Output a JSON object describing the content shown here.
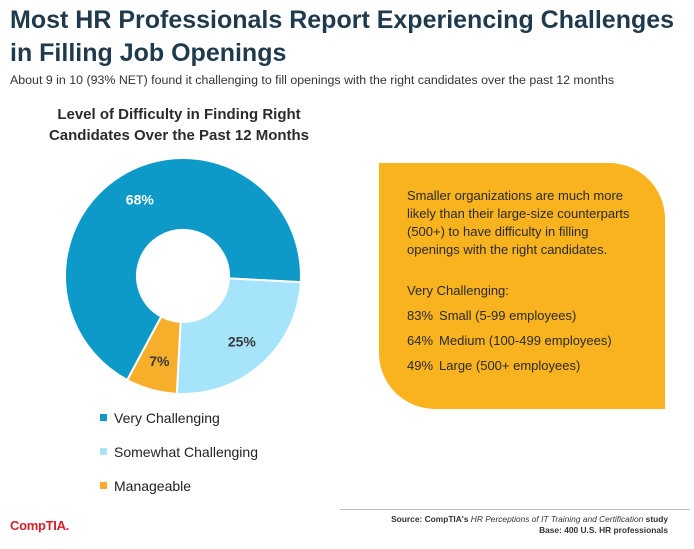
{
  "header": {
    "title_line1": "Most HR Professionals Report Experiencing Challenges",
    "title_line2": "in Filling Job Openings",
    "subtitle": "About 9 in 10 (93% NET) found it challenging to fill openings with the right candidates over the past 12 months"
  },
  "chart_data": {
    "type": "pie",
    "title": "Level of Difficulty in Finding Right Candidates Over the Past 12 Months",
    "title_line1": "Level of Difficulty in Finding Right",
    "title_line2": "Candidates Over the Past 12 Months",
    "donut": true,
    "categories": [
      "Very Challenging",
      "Somewhat Challenging",
      "Manageable"
    ],
    "values": [
      68,
      25,
      7
    ],
    "labels": [
      "68%",
      "25%",
      "7%"
    ],
    "colors": [
      "#0e9ac9",
      "#a6e4fb",
      "#f6ae2b"
    ],
    "legend_position": "bottom-left"
  },
  "callout": {
    "text": "Smaller organizations are much more likely than their large-size counterparts (500+) to have difficulty in filling openings with the right candidates.",
    "label": "Very Challenging:",
    "rows": [
      {
        "pct": "83%",
        "label": "Small (5-99 employees)"
      },
      {
        "pct": "64%",
        "label": "Medium (100-499 employees)"
      },
      {
        "pct": "49%",
        "label": "Large (500+ employees)"
      }
    ],
    "color": "#f8b31f"
  },
  "footer": {
    "brand": "CompTIA.",
    "source_prefix": "Source: CompTIA's ",
    "source_title": "HR Perceptions of IT Training and Certification",
    "source_suffix": " study",
    "base": "Base: 400 U.S. HR professionals"
  }
}
